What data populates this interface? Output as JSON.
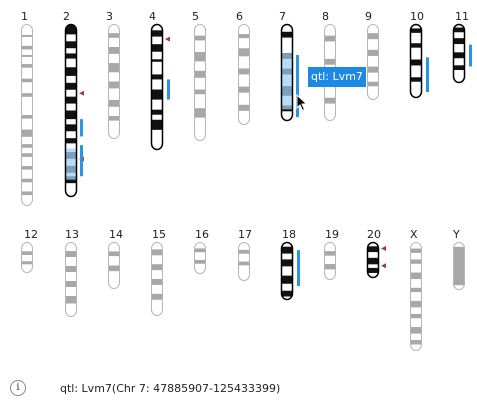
{
  "colors": {
    "band_dark": "#111111",
    "band_gray": "#a8a8a8",
    "highlight": "#9fd0f7",
    "qtl": "#2b95e0",
    "marker": "#a23a3a",
    "tooltip_bg": "#1e88e5",
    "tooltip_text": "#ffffff"
  },
  "chromosomes": [
    {
      "label": "1",
      "row": 1,
      "highlighted": false,
      "bands": "gray"
    },
    {
      "label": "2",
      "row": 1,
      "highlighted": true,
      "bands": "dark",
      "markers": 2,
      "qtl_tracks": 2
    },
    {
      "label": "3",
      "row": 1,
      "highlighted": false,
      "bands": "gray"
    },
    {
      "label": "4",
      "row": 1,
      "highlighted": true,
      "bands": "dark",
      "markers": 1,
      "qtl_tracks": 1
    },
    {
      "label": "5",
      "row": 1,
      "highlighted": false,
      "bands": "gray"
    },
    {
      "label": "6",
      "row": 1,
      "highlighted": false,
      "bands": "gray"
    },
    {
      "label": "7",
      "row": 1,
      "highlighted": true,
      "bands": "dark",
      "qtl_tracks": 1,
      "selected": true
    },
    {
      "label": "8",
      "row": 1,
      "highlighted": false,
      "bands": "gray"
    },
    {
      "label": "9",
      "row": 1,
      "highlighted": false,
      "bands": "gray"
    },
    {
      "label": "10",
      "row": 1,
      "highlighted": true,
      "bands": "dark",
      "qtl_tracks": 1
    },
    {
      "label": "11",
      "row": 1,
      "highlighted": true,
      "bands": "dark",
      "qtl_tracks": 1
    },
    {
      "label": "12",
      "row": 2,
      "highlighted": false,
      "bands": "gray"
    },
    {
      "label": "13",
      "row": 2,
      "highlighted": false,
      "bands": "gray"
    },
    {
      "label": "14",
      "row": 2,
      "highlighted": false,
      "bands": "gray"
    },
    {
      "label": "15",
      "row": 2,
      "highlighted": false,
      "bands": "gray"
    },
    {
      "label": "16",
      "row": 2,
      "highlighted": false,
      "bands": "gray"
    },
    {
      "label": "17",
      "row": 2,
      "highlighted": false,
      "bands": "gray"
    },
    {
      "label": "18",
      "row": 2,
      "highlighted": true,
      "bands": "dark",
      "qtl_tracks": 1
    },
    {
      "label": "19",
      "row": 2,
      "highlighted": false,
      "bands": "gray"
    },
    {
      "label": "20",
      "row": 2,
      "highlighted": true,
      "bands": "dark",
      "markers": 2
    },
    {
      "label": "X",
      "row": 2,
      "highlighted": false,
      "bands": "gray"
    },
    {
      "label": "Y",
      "row": 2,
      "highlighted": false,
      "bands": "gray"
    }
  ],
  "tooltip": {
    "text": "qtl: Lvm7"
  },
  "status": {
    "icon": "info-icon",
    "text": "qtl: Lvm7(Chr 7: 47885907-125433399)"
  },
  "cursor": {
    "icon": "arrow-cursor-icon"
  }
}
